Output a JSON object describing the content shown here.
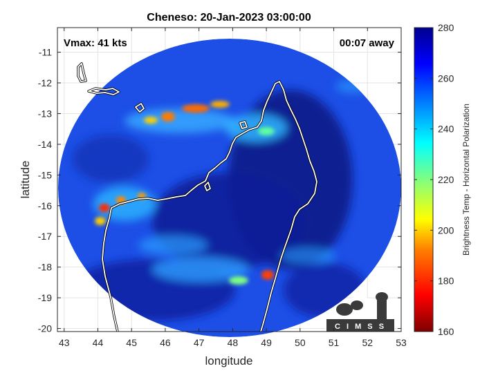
{
  "title": "Cheneso: 20-Jan-2023 03:00:00",
  "vmax_label": "Vmax: 41 kts",
  "time_label": "00:07 away",
  "x_axis": {
    "label": "longitude",
    "ticks": [
      "43",
      "44",
      "45",
      "46",
      "47",
      "48",
      "49",
      "50",
      "51",
      "52",
      "53"
    ],
    "range": [
      42.8,
      53
    ]
  },
  "y_axis": {
    "label": "latitude",
    "ticks": [
      "-11",
      "-12",
      "-13",
      "-14",
      "-15",
      "-16",
      "-17",
      "-18",
      "-19",
      "-20"
    ],
    "range": [
      -20.1,
      -10.2
    ]
  },
  "colorbar": {
    "label": "Brightness Temp - Horizontal Polarization",
    "ticks": [
      "280",
      "260",
      "240",
      "220",
      "200",
      "180",
      "160"
    ],
    "range": [
      160,
      280
    ],
    "colors": [
      "#7f0000",
      "#ff0000",
      "#ff8000",
      "#ffff00",
      "#80ff80",
      "#00ffff",
      "#0080ff",
      "#0000ff",
      "#00008f"
    ]
  },
  "logo_text": "C I M S S",
  "colors": {
    "background_field": "#1d4fe6",
    "core": "#0b1a8c",
    "coast": "#ffffff"
  },
  "chart_data": {
    "type": "heatmap",
    "title": "Cheneso: 20-Jan-2023 03:00:00",
    "xlabel": "longitude",
    "ylabel": "latitude",
    "xlim": [
      42.8,
      53
    ],
    "ylim": [
      -20.1,
      -10.2
    ],
    "colorbar_label": "Brightness Temp - Horizontal Polarization",
    "clim": [
      160,
      280
    ],
    "grid": true,
    "annotations": [
      "Vmax: 41 kts",
      "00:07 away"
    ]
  }
}
